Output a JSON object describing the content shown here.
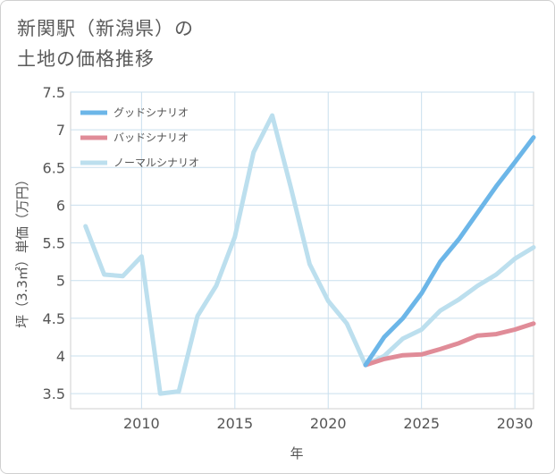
{
  "title": {
    "line1": "新関駅（新潟県）の",
    "line2": "土地の価格推移"
  },
  "chart_data": {
    "type": "line",
    "xlabel": "年",
    "ylabel": "坪（3.3㎡）単価（万円）",
    "xlim": [
      2006.2,
      2031
    ],
    "ylim": [
      3.3,
      7.5
    ],
    "x_ticks": [
      2010,
      2015,
      2020,
      2025,
      2030
    ],
    "y_ticks": [
      3.5,
      4,
      4.5,
      5,
      5.5,
      6,
      6.5,
      7,
      7.5
    ],
    "grid": true,
    "legend_position": "top-left",
    "series": [
      {
        "name": "グッドシナリオ",
        "color": "#6cb6e8",
        "x": [
          2022,
          2023,
          2024,
          2025,
          2026,
          2027,
          2028,
          2029,
          2030,
          2031
        ],
        "y": [
          3.88,
          4.25,
          4.5,
          4.83,
          5.25,
          5.55,
          5.9,
          6.25,
          6.57,
          6.9
        ]
      },
      {
        "name": "バッドシナリオ",
        "color": "#e08c98",
        "x": [
          2022,
          2023,
          2024,
          2025,
          2026,
          2027,
          2028,
          2029,
          2030,
          2031
        ],
        "y": [
          3.88,
          3.96,
          4.01,
          4.02,
          4.09,
          4.17,
          4.27,
          4.29,
          4.35,
          4.43
        ]
      },
      {
        "name": "ノーマルシナリオ",
        "color": "#bcdfee",
        "x": [
          2007,
          2008,
          2009,
          2010,
          2011,
          2012,
          2013,
          2014,
          2015,
          2016,
          2017,
          2018,
          2019,
          2020,
          2021,
          2022,
          2023,
          2024,
          2025,
          2026,
          2027,
          2028,
          2029,
          2030,
          2031
        ],
        "y": [
          5.72,
          5.08,
          5.06,
          5.32,
          3.5,
          3.53,
          4.53,
          4.93,
          5.58,
          6.7,
          7.19,
          6.23,
          5.22,
          4.73,
          4.43,
          3.88,
          4.0,
          4.23,
          4.35,
          4.6,
          4.75,
          4.93,
          5.08,
          5.29,
          5.44
        ]
      }
    ]
  }
}
